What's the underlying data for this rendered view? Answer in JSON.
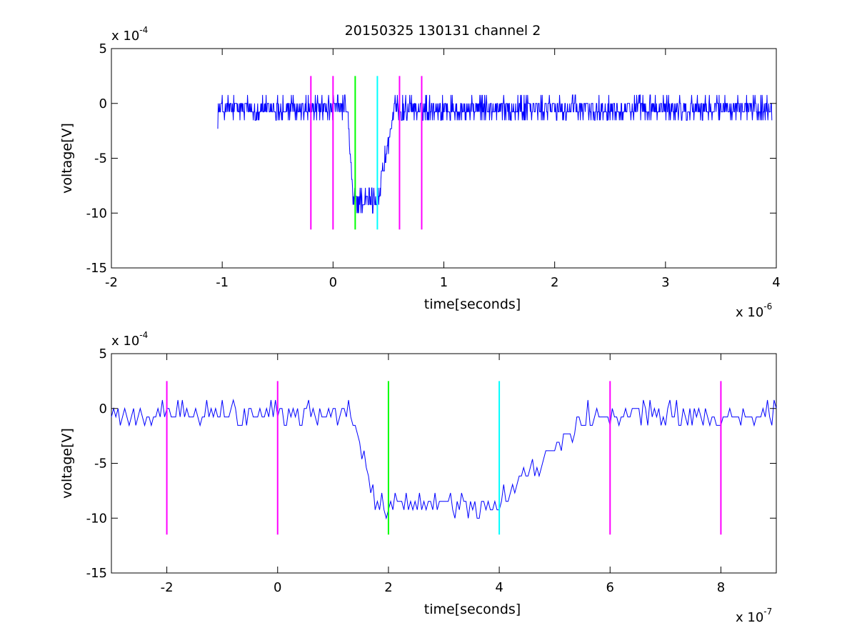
{
  "figure_title": "20150325 130131 channel 2",
  "chart_data": [
    {
      "type": "line",
      "title": "20150325 130131 channel 2",
      "xlabel": "time[seconds]",
      "ylabel": "voltage[V]",
      "x_exponent": {
        "base": "x 10",
        "power": "-6"
      },
      "y_exponent": {
        "base": "x 10",
        "power": "-4"
      },
      "xlim": [
        -2,
        4
      ],
      "ylim": [
        -15,
        5
      ],
      "xticks": [
        -2,
        -1,
        0,
        1,
        2,
        3,
        4
      ],
      "yticks": [
        5,
        0,
        -5,
        -10,
        -15
      ],
      "xtick_labels": [
        "-2",
        "-1",
        "0",
        "1",
        "2",
        "3",
        "4"
      ],
      "ytick_labels": [
        "5",
        "0",
        "-5",
        "-10",
        "-15"
      ],
      "grid": false,
      "legend": "none",
      "series": [
        {
          "color": "#0000ff",
          "x_range": [
            -1.04,
            3.96
          ],
          "points": 1251,
          "baseline": -0.5,
          "noise_amplitude": 1.5,
          "dip": {
            "start": 0.13,
            "fall_end": 0.18,
            "floor": -8.8,
            "rise_start": 0.4,
            "recovered": 0.56
          }
        }
      ],
      "markers": [
        {
          "x": -0.2,
          "color": "#ff00ff"
        },
        {
          "x": 0.0,
          "color": "#ff00ff"
        },
        {
          "x": 0.2,
          "color": "#00ff00"
        },
        {
          "x": 0.4,
          "color": "#00ffff"
        },
        {
          "x": 0.6,
          "color": "#ff00ff"
        },
        {
          "x": 0.8,
          "color": "#ff00ff"
        }
      ],
      "marker_span": [
        -11.5,
        2.5
      ]
    },
    {
      "type": "line",
      "xlabel": "time[seconds]",
      "ylabel": "voltage[V]",
      "x_exponent": {
        "base": "x 10",
        "power": "-7"
      },
      "y_exponent": {
        "base": "x 10",
        "power": "-4"
      },
      "xlim": [
        -3,
        9
      ],
      "ylim": [
        -15,
        5
      ],
      "xticks": [
        -2,
        0,
        2,
        4,
        6,
        8
      ],
      "yticks": [
        5,
        0,
        -5,
        -10,
        -15
      ],
      "xtick_labels": [
        "-2",
        "0",
        "2",
        "4",
        "6",
        "8"
      ],
      "ytick_labels": [
        "5",
        "0",
        "-5",
        "-10",
        "-15"
      ],
      "grid": false,
      "legend": "none",
      "series": [
        {
          "color": "#0000ff",
          "x_range": [
            -3,
            9
          ],
          "points": 301,
          "baseline": -0.5,
          "noise_amplitude": 1.5,
          "dip": {
            "start": 1.3,
            "fall_end": 1.8,
            "floor": -8.8,
            "rise_start": 4.0,
            "recovered": 5.6
          }
        }
      ],
      "markers": [
        {
          "x": -2,
          "color": "#ff00ff"
        },
        {
          "x": 0,
          "color": "#ff00ff"
        },
        {
          "x": 2,
          "color": "#00ff00"
        },
        {
          "x": 4,
          "color": "#00ffff"
        },
        {
          "x": 6,
          "color": "#ff00ff"
        },
        {
          "x": 8,
          "color": "#ff00ff"
        }
      ],
      "marker_span": [
        -11.5,
        2.5
      ]
    }
  ]
}
